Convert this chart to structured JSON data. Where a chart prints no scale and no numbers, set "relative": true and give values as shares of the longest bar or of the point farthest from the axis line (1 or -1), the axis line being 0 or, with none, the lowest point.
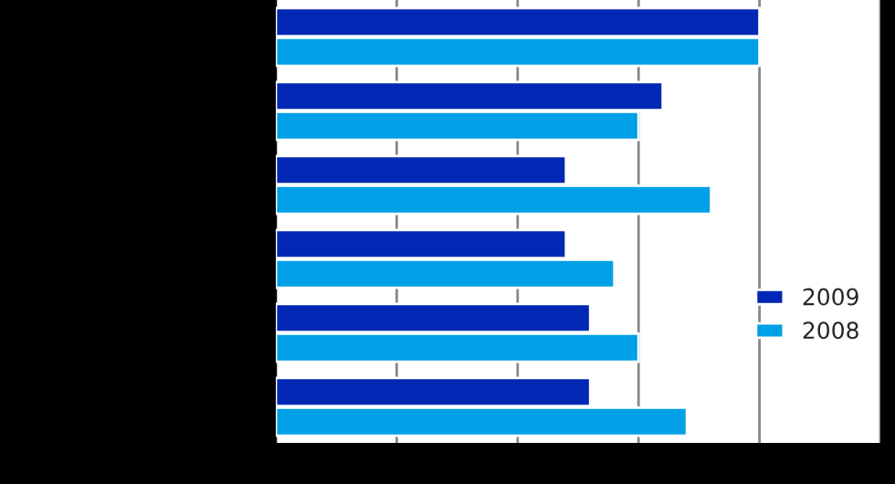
{
  "chart_data": {
    "type": "bar",
    "orientation": "horizontal",
    "relative": true,
    "categories": [
      null,
      null,
      null,
      null,
      null,
      null
    ],
    "series": [
      {
        "name": "2009",
        "color": "#0028b4",
        "values": [
          1,
          0.8,
          0.6,
          0.6,
          0.65,
          0.65
        ]
      },
      {
        "name": "2008",
        "color": "#00a0e6",
        "values": [
          1,
          0.75,
          0.9,
          0.7,
          0.75,
          0.85
        ]
      }
    ],
    "grid": "x",
    "legend": "bottom right"
  }
}
